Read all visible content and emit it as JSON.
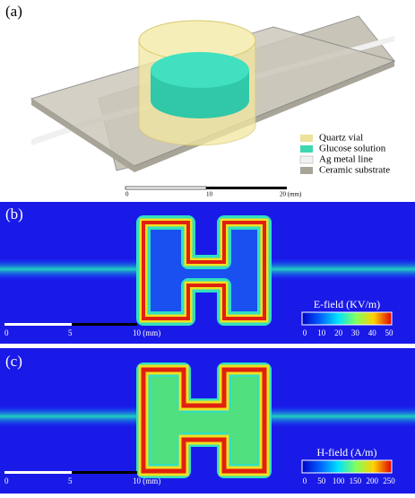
{
  "panel_a": {
    "label": "(a)",
    "legend": [
      "Quartz vial",
      "Glucose solution",
      "Ag metal line",
      "Ceramic substrate"
    ],
    "scale": [
      "0",
      "10",
      "20 (mm)"
    ]
  },
  "panel_b": {
    "label": "(b)",
    "scale": [
      "0",
      "5",
      "10 (mm)"
    ],
    "colorbar": {
      "title": "E-field (KV/m)",
      "ticks": [
        0,
        10,
        20,
        30,
        40,
        50
      ]
    }
  },
  "panel_c": {
    "label": "(c)",
    "scale": [
      "0",
      "5",
      "10 (mm)"
    ],
    "colorbar": {
      "title": "H-field (A/m)",
      "ticks": [
        0,
        50,
        100,
        150,
        200,
        250
      ]
    }
  }
}
